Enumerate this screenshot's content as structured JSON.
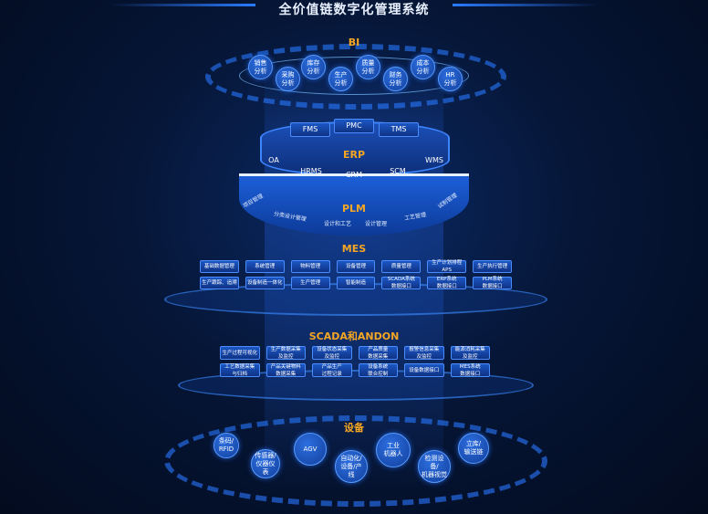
{
  "title": "全价值链数字化管理系统",
  "bi": {
    "label": "BI",
    "items": [
      "销售\n分析",
      "采购\n分析",
      "库存\n分析",
      "生产\n分析",
      "质量\n分析",
      "财务\n分析",
      "成本\n分析",
      "HR\n分析"
    ]
  },
  "erp": {
    "label": "ERP",
    "top": [
      "FMS",
      "PMC",
      "TMS"
    ],
    "front": [
      "OA",
      "HRMS",
      "CRM",
      "SCM",
      "WMS"
    ]
  },
  "plm": {
    "label": "PLM",
    "items": [
      "项目管理",
      "分类设计管理",
      "设计和工艺",
      "设计管理",
      "工艺管理",
      "试制管理"
    ]
  },
  "mes": {
    "label": "MES",
    "items": [
      "基础数据管理",
      "系统管理",
      "物料管理",
      "设备管理",
      "质量管理",
      "生产计划排程\nAPS",
      "生产执行管理",
      "生产跟踪、追溯",
      "设备制造一体化",
      "生产管理",
      "智能制造",
      "SCADA系统\n数据接口",
      "ERP系统\n数据接口",
      "PLM系统\n数据接口"
    ]
  },
  "scada": {
    "label": "SCADA和ANDON",
    "items": [
      "生产过程可视化",
      "生产数据采集\n及监控",
      "设备状态采集\n及监控",
      "产品质量\n数据采集",
      "报警信息采集\n及监控",
      "能源消耗采集\n及监控",
      "工艺数据采集\n与归档",
      "产品关键物料\n数据采集",
      "产品生产\n过程记录",
      "设备系统\n联合控制",
      "设备数据接口",
      "MES系统\n数据接口"
    ]
  },
  "equipment": {
    "label": "设备",
    "items": [
      "条码/\nRFID",
      "传感器/\n仪器仪表",
      "AGV",
      "自动化/\n设备/产线",
      "工业\n机器人",
      "检测设备/\n机器视觉",
      "立库/\n输送链"
    ]
  },
  "colors": {
    "accent": "#f5a623",
    "primary": "#1d5fd8",
    "background": "#061637"
  }
}
